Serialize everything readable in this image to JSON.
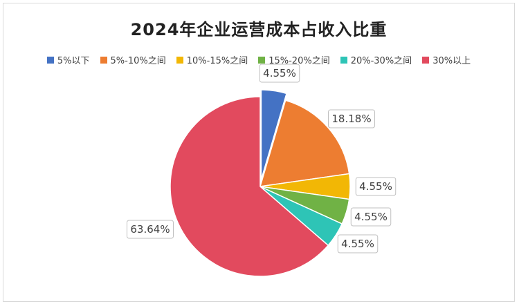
{
  "chart_data": {
    "type": "pie",
    "title": "2024年企业运营成本占收入比重",
    "legend_position": "top",
    "categories": [
      "5%以下",
      "5%-10%之间",
      "10%-15%之间",
      "15%-20%之间",
      "20%-30%之间",
      "30%以上"
    ],
    "values": [
      4.55,
      18.18,
      4.55,
      4.55,
      4.55,
      63.64
    ],
    "labels": [
      "4.55%",
      "18.18%",
      "4.55%",
      "4.55%",
      "4.55%",
      "63.64%"
    ],
    "colors": [
      "#4472C4",
      "#ED7D31",
      "#F2B705",
      "#70B245",
      "#2EC4B6",
      "#E24A5E"
    ],
    "exploded": [
      true,
      false,
      false,
      false,
      false,
      false
    ]
  }
}
